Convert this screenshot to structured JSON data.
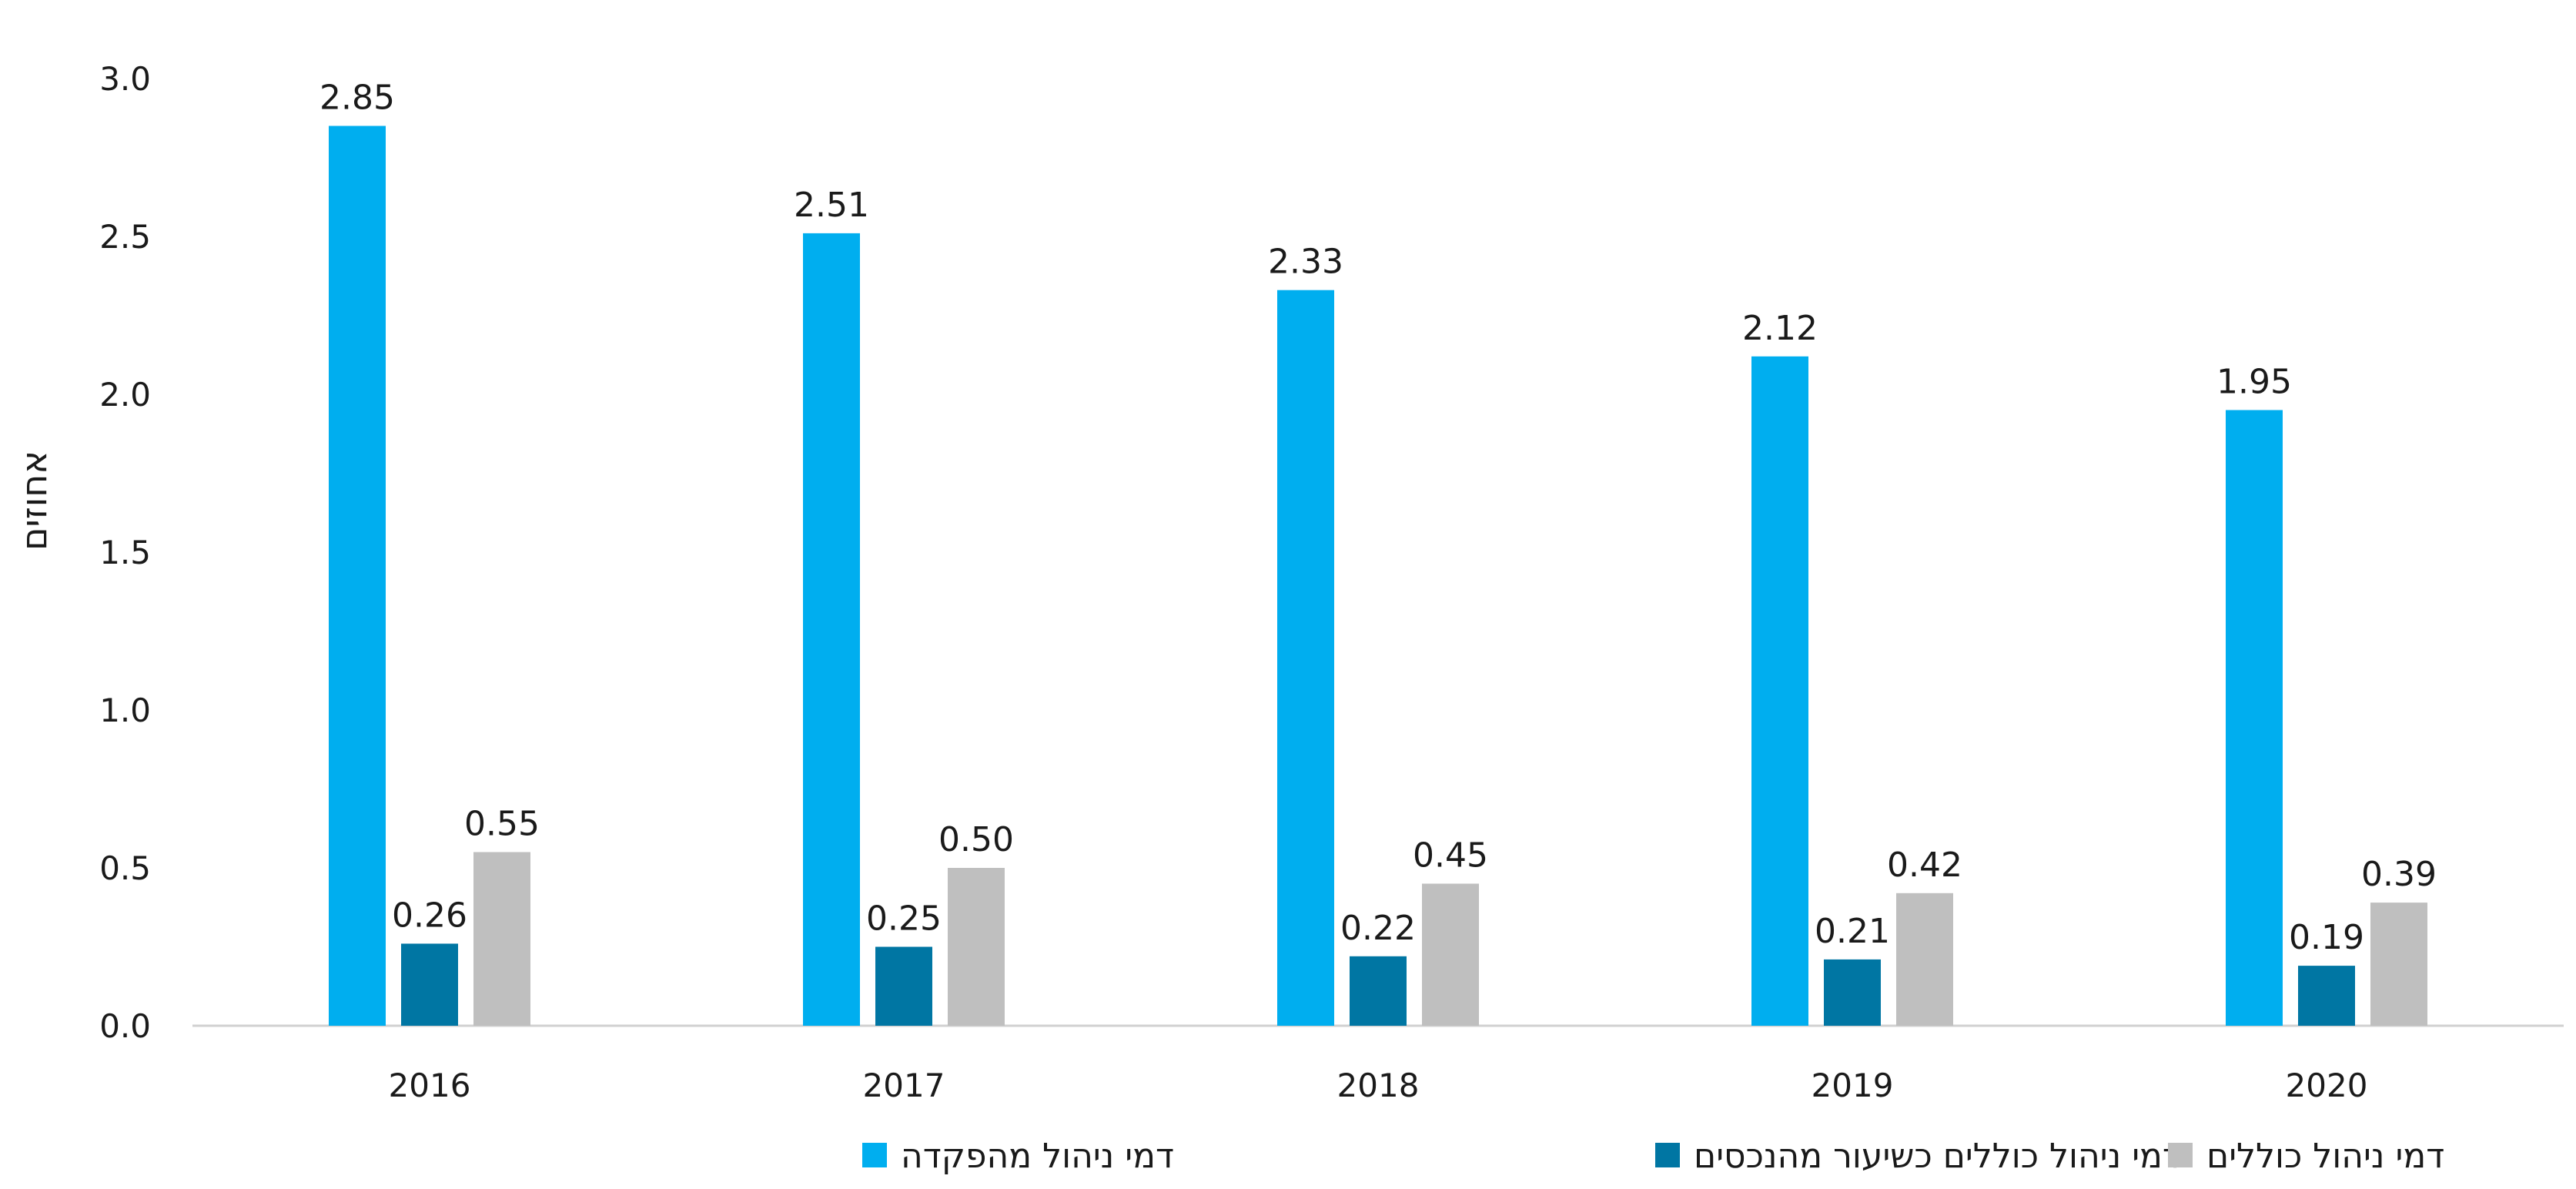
{
  "chart_data": {
    "type": "bar",
    "title": "",
    "xlabel": "",
    "ylabel": "אחוזים",
    "ylim": [
      0,
      3.0
    ],
    "yticks": [
      "0.0",
      "0.5",
      "1.0",
      "1.5",
      "2.0",
      "2.5",
      "3.0"
    ],
    "categories": [
      "2016",
      "2017",
      "2018",
      "2019",
      "2020"
    ],
    "series": [
      {
        "name": "דמי ניהול מהפקדה",
        "color": "#00aeef",
        "values": [
          2.85,
          2.51,
          2.33,
          2.12,
          1.95
        ],
        "labels": [
          "2.85",
          "2.51",
          "2.33",
          "2.12",
          "1.95"
        ]
      },
      {
        "name": "דמי ניהול כוללים כשיעור מהנכסים",
        "color": "#0076a3",
        "values": [
          0.26,
          0.25,
          0.22,
          0.21,
          0.19
        ],
        "labels": [
          "0.26",
          "0.25",
          "0.22",
          "0.21",
          "0.19"
        ]
      },
      {
        "name": "דמי ניהול כוללים",
        "color": "#bfbfbf",
        "values": [
          0.55,
          0.5,
          0.45,
          0.42,
          0.39
        ],
        "labels": [
          "0.55",
          "0.50",
          "0.45",
          "0.42",
          "0.39"
        ]
      }
    ],
    "grid": false,
    "legend": "bottom"
  }
}
